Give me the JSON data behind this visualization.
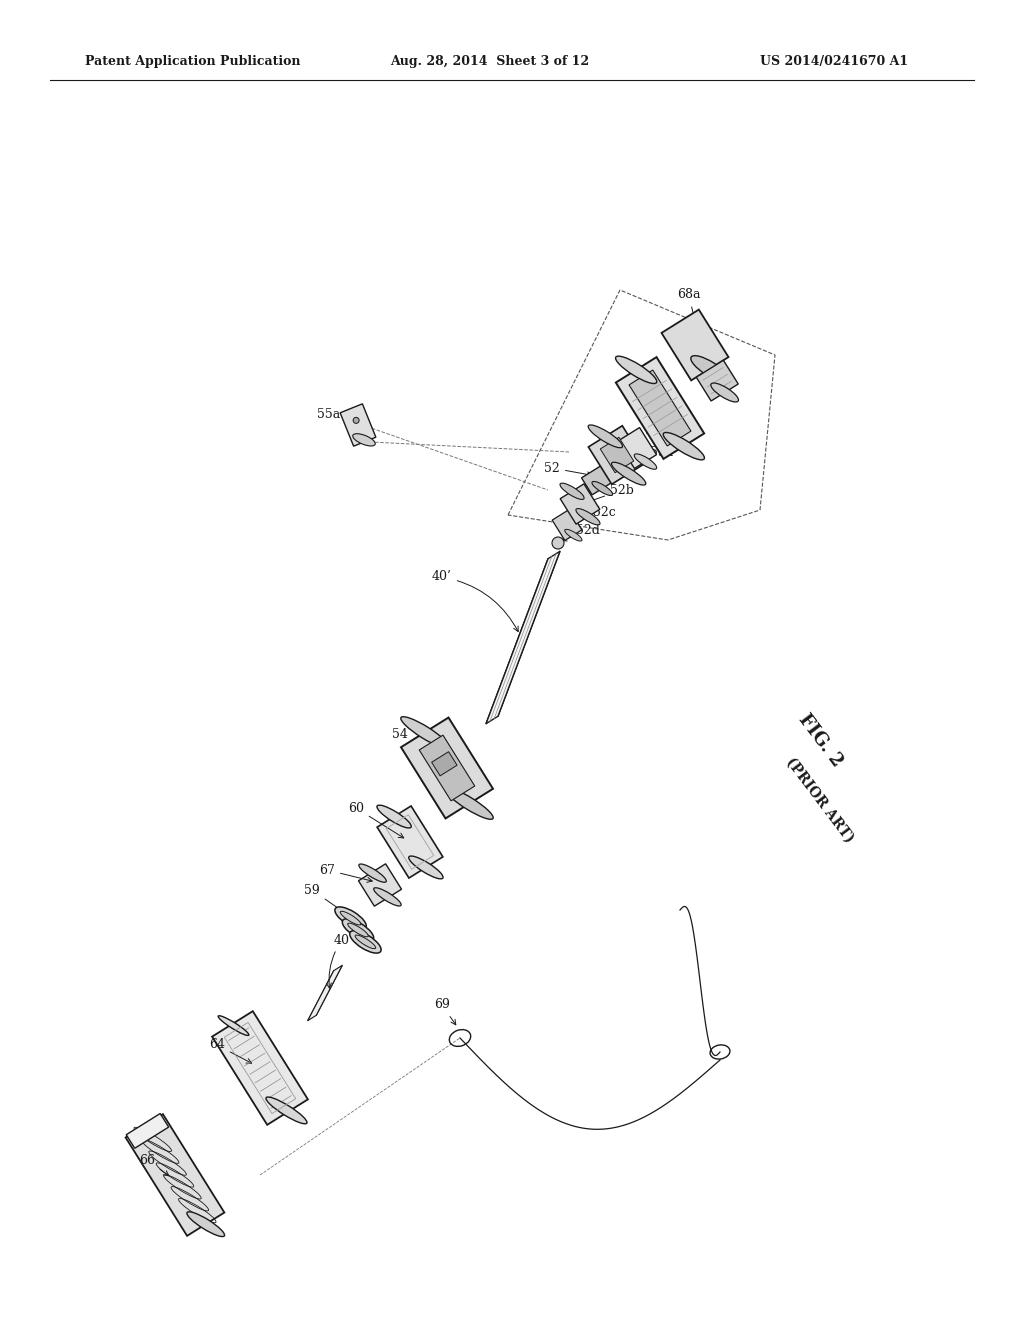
{
  "header_left": "Patent Application Publication",
  "header_mid": "Aug. 28, 2014  Sheet 3 of 12",
  "header_right": "US 2014/0241670 A1",
  "fig_label": "FIG. 2",
  "fig_sublabel": "(PRIOR ART)",
  "bg_color": "#ffffff",
  "lc": "#1a1a1a",
  "gray_light": "#e8e8e8",
  "gray_mid": "#cccccc",
  "gray_dark": "#999999",
  "header_fontsize": 9,
  "label_fontsize": 9,
  "fig_label_fontsize": 13
}
